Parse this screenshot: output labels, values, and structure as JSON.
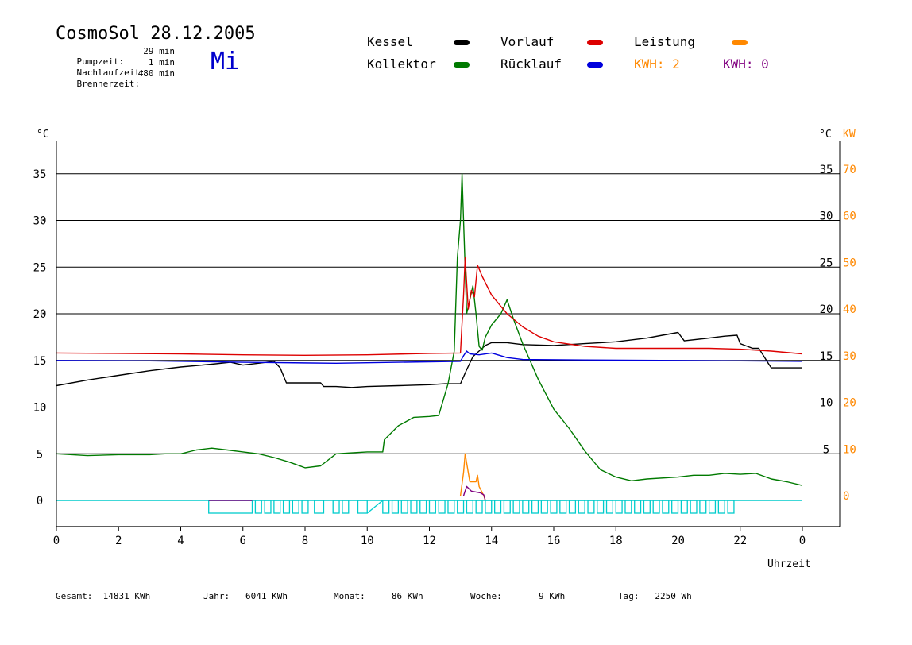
{
  "header": {
    "title": "CosmoSol 28.12.2005",
    "weekday": "Mi",
    "pump_label": "Pumpzeit:",
    "pump_value": "29 min",
    "overrun_label": "Nachlaufzeit:",
    "overrun_value": "1 min",
    "burner_label": "Brennerzeit:",
    "burner_value": "480 min"
  },
  "legend": {
    "kessel": "Kessel",
    "kollektor": "Kollektor",
    "vorlauf": "Vorlauf",
    "ruecklauf": "Rücklauf",
    "leistung": "Leistung",
    "kwh_orange": "KWH: 2",
    "kwh_purple": "KWH: 0"
  },
  "colors": {
    "kessel": "#000000",
    "kollektor": "#007a00",
    "vorlauf": "#dd0000",
    "ruecklauf": "#0000dd",
    "leistung": "#ff8800",
    "kwh_purple": "#800080",
    "cyan": "#00cccc"
  },
  "footer": {
    "gesamt_label": "Gesamt:",
    "gesamt_value": "14831 KWh",
    "jahr_label": "Jahr:",
    "jahr_value": "6041 KWh",
    "monat_label": "Monat:",
    "monat_value": "86 KWh",
    "woche_label": "Woche:",
    "woche_value": "9 KWh",
    "tag_label": "Tag:",
    "tag_value": "2250 Wh"
  },
  "chart_data": {
    "type": "line",
    "title": "CosmoSol 28.12.2005",
    "xlabel": "Uhrzeit",
    "ylabel_left": "°C",
    "ylabel_right_temp": "°C",
    "ylabel_right_power": "KW",
    "x_ticks": [
      "0",
      "2",
      "4",
      "6",
      "8",
      "10",
      "12",
      "14",
      "16",
      "18",
      "20",
      "22",
      "0"
    ],
    "y_ticks_left": [
      "0",
      "5",
      "10",
      "15",
      "20",
      "25",
      "30",
      "35"
    ],
    "y_ticks_right_temp": [
      "5",
      "10",
      "15",
      "20",
      "25",
      "30",
      "35"
    ],
    "y_ticks_right_power": [
      "0",
      "10",
      "20",
      "30",
      "40",
      "50",
      "60",
      "70"
    ],
    "xlim": [
      0,
      24
    ],
    "ylim": [
      -2.8,
      38.5
    ],
    "grid": true,
    "series": [
      {
        "name": "Kessel",
        "color": "#000000",
        "x": [
          0,
          1,
          2,
          3,
          4,
          5,
          5.6,
          6,
          6.5,
          7,
          7.2,
          7.4,
          8,
          8.5,
          8.6,
          9,
          9.5,
          10,
          11,
          12,
          12.5,
          13,
          13.2,
          13.4,
          13.8,
          14,
          14.5,
          15,
          16,
          17,
          18,
          19,
          19.5,
          20,
          20.2,
          21,
          21.5,
          21.9,
          22,
          22.4,
          22.6,
          22.9,
          23,
          24
        ],
        "y": [
          12.3,
          12.9,
          13.4,
          13.9,
          14.3,
          14.6,
          14.8,
          14.5,
          14.7,
          14.9,
          14.2,
          12.6,
          12.6,
          12.6,
          12.2,
          12.2,
          12.1,
          12.2,
          12.3,
          12.4,
          12.5,
          12.5,
          14.0,
          15.4,
          16.6,
          16.9,
          16.9,
          16.7,
          16.6,
          16.8,
          17.0,
          17.4,
          17.7,
          18.0,
          17.1,
          17.4,
          17.6,
          17.7,
          16.8,
          16.3,
          16.3,
          14.7,
          14.2,
          14.2
        ]
      },
      {
        "name": "Kollektor",
        "color": "#007a00",
        "x": [
          0,
          0.5,
          1,
          2,
          3,
          3.5,
          4,
          4.5,
          5,
          5.5,
          6,
          6.5,
          7,
          7.5,
          8,
          8.5,
          9,
          9.5,
          10,
          10.5,
          10.55,
          11,
          11.5,
          12,
          12.3,
          12.6,
          12.8,
          12.9,
          13.0,
          13.05,
          13.1,
          13.2,
          13.3,
          13.4,
          13.5,
          13.6,
          13.7,
          13.8,
          14,
          14.3,
          14.5,
          14.7,
          15,
          15.5,
          16,
          16.5,
          17,
          17.5,
          18,
          18.5,
          19,
          20,
          20.5,
          21,
          21.5,
          22,
          22.5,
          23,
          23.5,
          24
        ],
        "y": [
          5.0,
          4.9,
          4.8,
          4.9,
          4.9,
          5.0,
          5.0,
          5.4,
          5.6,
          5.4,
          5.2,
          5.0,
          4.6,
          4.1,
          3.5,
          3.7,
          5.0,
          5.1,
          5.2,
          5.2,
          6.5,
          8.0,
          8.9,
          9.0,
          9.1,
          12.5,
          16.0,
          26.0,
          30.0,
          35.0,
          30.0,
          20.0,
          21.5,
          23.0,
          20.0,
          16.5,
          16.1,
          17.5,
          18.8,
          20.0,
          21.5,
          19.5,
          16.8,
          13.0,
          9.8,
          7.7,
          5.3,
          3.3,
          2.5,
          2.1,
          2.3,
          2.5,
          2.7,
          2.7,
          2.9,
          2.8,
          2.9,
          2.3,
          2.0,
          1.6
        ]
      },
      {
        "name": "Vorlauf",
        "color": "#dd0000",
        "x": [
          0,
          2,
          4,
          6,
          8,
          10,
          12,
          13.0,
          13.1,
          13.15,
          13.25,
          13.35,
          13.45,
          13.55,
          13.7,
          14,
          14.5,
          15,
          15.5,
          16,
          17,
          18,
          19,
          20,
          21,
          22,
          23,
          24
        ],
        "y": [
          15.8,
          15.75,
          15.7,
          15.6,
          15.55,
          15.6,
          15.75,
          15.8,
          22.0,
          26.0,
          20.5,
          22.5,
          21.8,
          25.2,
          24.0,
          22.0,
          20.0,
          18.6,
          17.6,
          17.0,
          16.5,
          16.3,
          16.3,
          16.3,
          16.3,
          16.2,
          16.0,
          15.7
        ]
      },
      {
        "name": "Rücklauf",
        "color": "#0000dd",
        "x": [
          0,
          3,
          6,
          9,
          12,
          13.0,
          13.1,
          13.2,
          13.3,
          13.6,
          14,
          14.5,
          15,
          17,
          20,
          22,
          24
        ],
        "y": [
          15.0,
          14.95,
          14.8,
          14.7,
          14.85,
          14.9,
          15.5,
          16.0,
          15.7,
          15.6,
          15.8,
          15.3,
          15.1,
          15.05,
          15.0,
          14.95,
          14.9
        ]
      },
      {
        "name": "Leistung",
        "color": "#ff8800",
        "x": [
          13.0,
          13.1,
          13.15,
          13.25,
          13.3,
          13.5,
          13.55,
          13.6,
          13.75,
          13.8
        ],
        "y": [
          0.5,
          3.0,
          5.0,
          3.0,
          2.0,
          2.0,
          2.7,
          1.5,
          0.5,
          0.0
        ]
      },
      {
        "name": "KWH",
        "color": "#800080",
        "x": [
          13.1,
          13.2,
          13.35,
          13.5,
          13.65,
          13.75,
          13.8
        ],
        "y": [
          0.5,
          1.5,
          1.0,
          0.9,
          0.8,
          0.6,
          0.0
        ]
      }
    ],
    "cyan_bars": {
      "color": "#00cccc",
      "segments": [
        [
          4.9,
          6.3
        ],
        [
          6.4,
          6.6
        ],
        [
          6.7,
          6.9
        ],
        [
          7.0,
          7.2
        ],
        [
          7.3,
          7.5
        ],
        [
          7.6,
          7.8
        ],
        [
          7.9,
          8.1
        ],
        [
          8.3,
          8.6
        ],
        [
          8.9,
          9.1
        ],
        [
          9.2,
          9.4
        ],
        [
          9.7,
          10.0
        ],
        [
          10.5,
          10.7
        ],
        [
          10.8,
          11.0
        ],
        [
          11.1,
          11.3
        ],
        [
          11.4,
          11.6
        ],
        [
          11.7,
          11.9
        ],
        [
          12.0,
          12.2
        ],
        [
          12.3,
          12.5
        ],
        [
          12.6,
          12.8
        ],
        [
          12.9,
          13.1
        ],
        [
          13.2,
          13.4
        ],
        [
          13.5,
          13.7
        ],
        [
          13.8,
          14.0
        ],
        [
          14.1,
          14.3
        ],
        [
          14.4,
          14.6
        ],
        [
          14.7,
          14.9
        ],
        [
          15.0,
          15.2
        ],
        [
          15.3,
          15.5
        ],
        [
          15.6,
          15.8
        ],
        [
          15.9,
          16.1
        ],
        [
          16.2,
          16.4
        ],
        [
          16.5,
          16.7
        ],
        [
          16.8,
          17.0
        ],
        [
          17.1,
          17.3
        ],
        [
          17.4,
          17.6
        ],
        [
          17.7,
          17.9
        ],
        [
          18.0,
          18.2
        ],
        [
          18.3,
          18.5
        ],
        [
          18.6,
          18.8
        ],
        [
          18.9,
          19.1
        ],
        [
          19.2,
          19.4
        ],
        [
          19.5,
          19.7
        ],
        [
          19.8,
          20.0
        ],
        [
          20.1,
          20.3
        ],
        [
          20.4,
          20.6
        ],
        [
          20.7,
          20.9
        ],
        [
          21.0,
          21.2
        ],
        [
          21.3,
          21.5
        ],
        [
          21.6,
          21.8
        ]
      ],
      "ramps": [
        [
          10.0,
          10.5
        ]
      ],
      "purple_top": [
        [
          4.9,
          6.3
        ]
      ]
    }
  }
}
